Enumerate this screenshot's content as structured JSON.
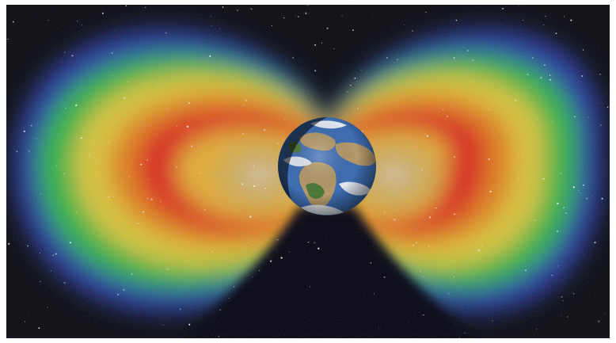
{
  "scene": {
    "subject": "earth-radiation-belts",
    "colors": {
      "space": "#05060d",
      "belt_outer_blue": "#2a3fb0",
      "belt_green": "#2fb83c",
      "belt_yellow": "#e3c53a",
      "belt_orange": "#e07a1e",
      "belt_red": "#d8201c",
      "inner_glow": "#9a9aa6",
      "ocean": "#3f6fb4",
      "land": "#b59a6a",
      "vegetation": "#4f7a3a",
      "cloud": "#f2f4f6"
    }
  }
}
